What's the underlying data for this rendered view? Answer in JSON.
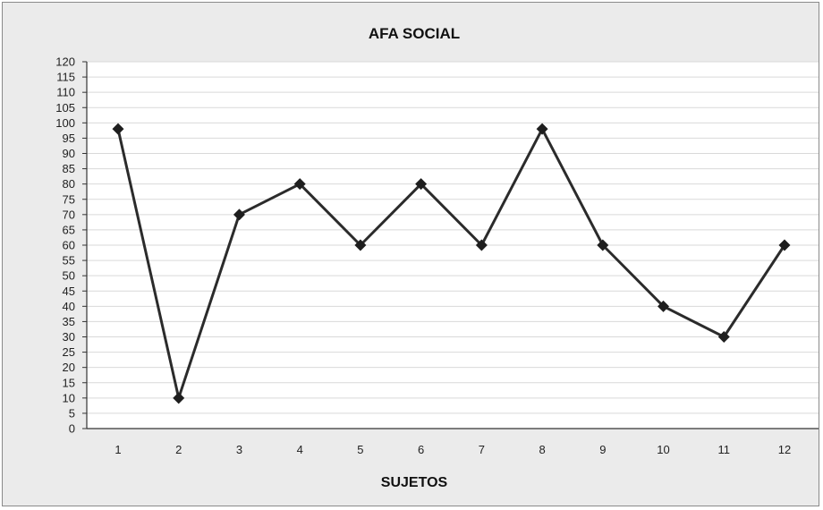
{
  "chart_data": {
    "type": "line",
    "title": "AFA SOCIAL",
    "xlabel": "SUJETOS",
    "ylabel": "",
    "categories": [
      "1",
      "2",
      "3",
      "4",
      "5",
      "6",
      "7",
      "8",
      "9",
      "10",
      "11",
      "12"
    ],
    "series": [
      {
        "values": [
          98,
          10,
          70,
          80,
          60,
          80,
          60,
          98,
          60,
          40,
          30,
          60
        ]
      }
    ],
    "ylim": [
      0,
      120
    ],
    "yticks": [
      0,
      5,
      10,
      15,
      20,
      25,
      30,
      35,
      40,
      45,
      50,
      55,
      60,
      65,
      70,
      75,
      80,
      85,
      90,
      95,
      100,
      105,
      110,
      115,
      120
    ],
    "grid": true,
    "legend": "none",
    "line_color": "#2b2b2b",
    "marker": "diamond"
  }
}
